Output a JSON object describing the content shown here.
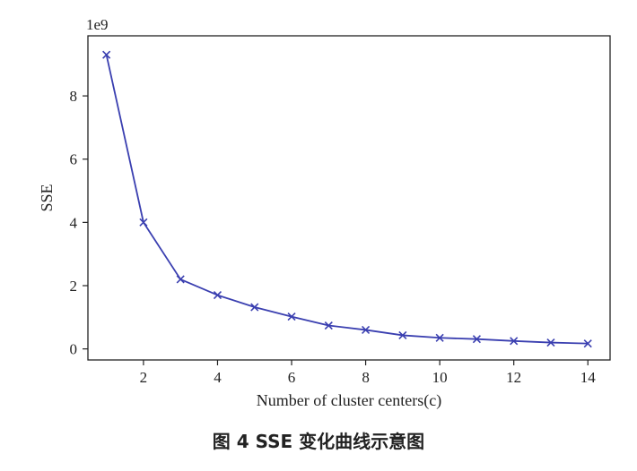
{
  "chart_data": {
    "type": "line",
    "xlabel": "Number of cluster centers(c)",
    "ylabel": "SSE",
    "y_scale_label": "1e9",
    "xlim": [
      0.5,
      14.6
    ],
    "ylim": [
      -0.35,
      9.9
    ],
    "xticks": [
      "2",
      "4",
      "6",
      "8",
      "10",
      "12",
      "14"
    ],
    "xtick_values": [
      2,
      4,
      6,
      8,
      10,
      12,
      14
    ],
    "yticks": [
      "0",
      "2",
      "4",
      "6",
      "8"
    ],
    "ytick_values": [
      0,
      2,
      4,
      6,
      8
    ],
    "marker": "x",
    "series": [
      {
        "color": "#3a3fb0",
        "x": [
          1,
          2,
          3,
          4,
          5,
          6,
          7,
          8,
          9,
          10,
          11,
          12,
          13,
          14
        ],
        "y": [
          9.3,
          4.0,
          2.2,
          1.7,
          1.32,
          1.02,
          0.74,
          0.6,
          0.43,
          0.35,
          0.31,
          0.25,
          0.2,
          0.17
        ]
      }
    ]
  },
  "caption": "图 4   SSE 变化曲线示意图"
}
